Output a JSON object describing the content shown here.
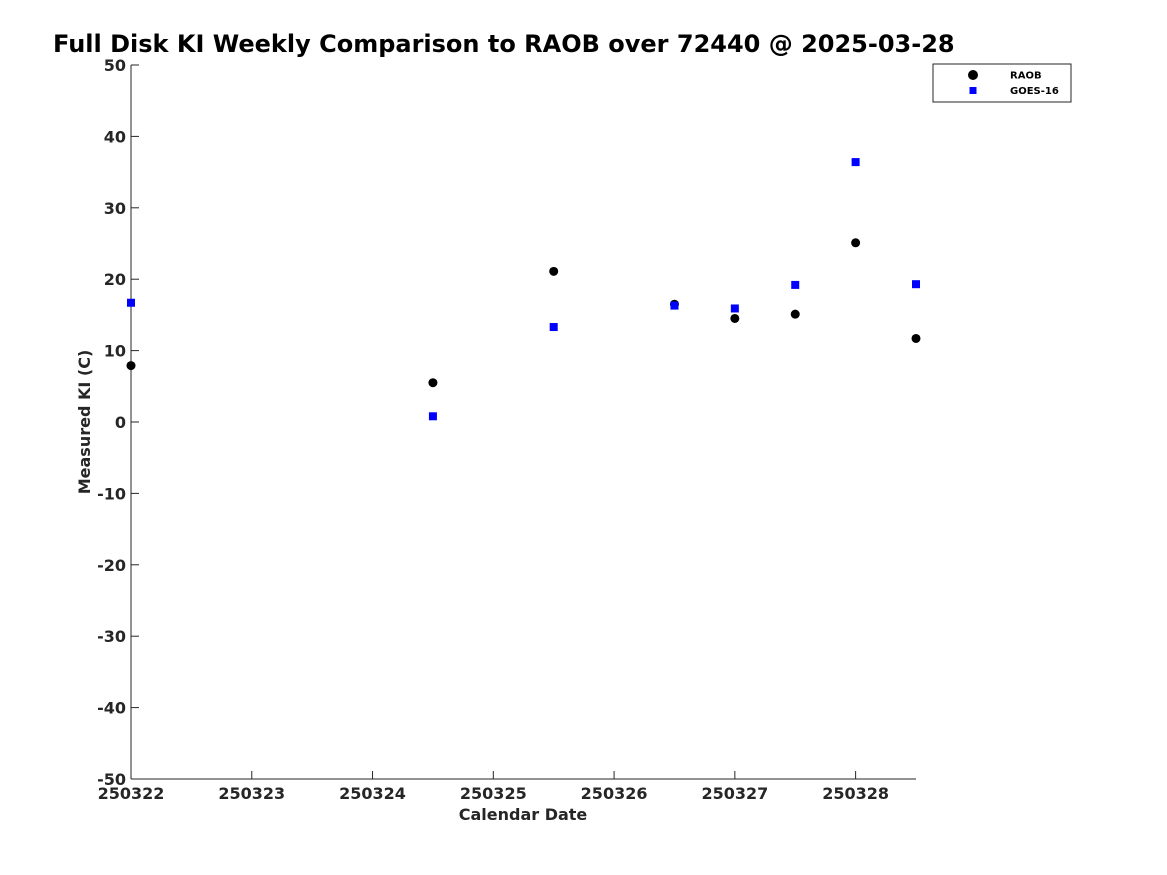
{
  "chart_data": {
    "type": "scatter",
    "title": "Full Disk KI Weekly Comparison to RAOB over 72440 @ 2025-03-28",
    "xlabel": "Calendar Date",
    "ylabel": "Measured KI (C)",
    "x_tick_labels": [
      "250322",
      "250323",
      "250324",
      "250325",
      "250326",
      "250327",
      "250328"
    ],
    "y_tick_labels": [
      "50",
      "40",
      "30",
      "20",
      "10",
      "0",
      "-10",
      "-20",
      "-30",
      "-40",
      "-50"
    ],
    "x_ticks": [
      0,
      1,
      2,
      3,
      4,
      5,
      6
    ],
    "y_ticks": [
      50,
      40,
      30,
      20,
      10,
      0,
      -10,
      -20,
      -30,
      -40,
      -50
    ],
    "xlim": [
      0,
      6.5
    ],
    "ylim": [
      -50,
      50
    ],
    "grid": false,
    "legend_position": "top-right",
    "series": [
      {
        "name": "RAOB",
        "marker": "circle",
        "color": "#000000",
        "x": [
          0,
          2.5,
          3.5,
          4.5,
          5,
          5.5,
          6,
          6.5
        ],
        "y": [
          7.9,
          5.5,
          21.1,
          16.5,
          14.5,
          15.1,
          25.1,
          11.7
        ]
      },
      {
        "name": "GOES-16",
        "marker": "square",
        "color": "#0000ff",
        "x": [
          0,
          2.5,
          3.5,
          4.5,
          5,
          5.5,
          6,
          6.5
        ],
        "y": [
          16.7,
          0.8,
          13.3,
          16.3,
          15.9,
          19.2,
          36.4,
          19.3
        ]
      }
    ]
  }
}
